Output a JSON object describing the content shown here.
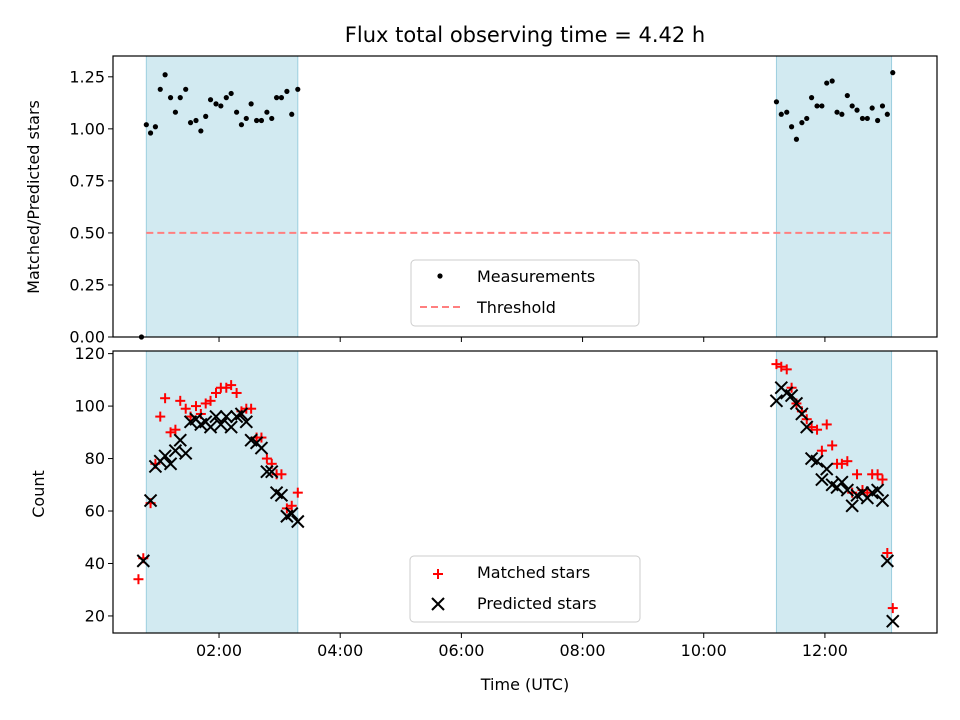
{
  "chart_data": [
    {
      "type": "scatter",
      "title": "Flux total observing time = 4.42 h",
      "xlabel": "",
      "ylabel": "Matched/Predicted stars",
      "xlim": [
        0.25,
        13.85
      ],
      "ylim": [
        0.0,
        1.35
      ],
      "yticks": [
        0.0,
        0.25,
        0.5,
        0.75,
        1.0,
        1.25
      ],
      "ytick_labels": [
        "0.00",
        "0.25",
        "0.50",
        "0.75",
        "1.00",
        "1.25"
      ],
      "xticks": [
        2,
        4,
        6,
        8,
        10,
        12
      ],
      "xtick_labels": [
        "",
        "",
        "",
        "",
        "",
        ""
      ],
      "spans": [
        [
          0.8,
          3.3
        ],
        [
          11.2,
          13.1
        ]
      ],
      "span_color": "#add8e6",
      "threshold": {
        "name": "Threshold",
        "value": 0.5,
        "x": [
          0.8,
          13.1
        ],
        "color": "#ff7f7f"
      },
      "legend": {
        "position": "lower center",
        "entries": [
          "Measurements",
          "Threshold"
        ]
      },
      "series": [
        {
          "name": "Measurements",
          "color": "#000000",
          "points": [
            [
              0.72,
              0.0
            ],
            [
              0.8,
              1.02
            ],
            [
              0.87,
              0.98
            ],
            [
              0.95,
              1.01
            ],
            [
              1.03,
              1.19
            ],
            [
              1.11,
              1.26
            ],
            [
              1.2,
              1.15
            ],
            [
              1.28,
              1.08
            ],
            [
              1.36,
              1.15
            ],
            [
              1.45,
              1.19
            ],
            [
              1.53,
              1.03
            ],
            [
              1.62,
              1.04
            ],
            [
              1.7,
              0.99
            ],
            [
              1.78,
              1.06
            ],
            [
              1.86,
              1.14
            ],
            [
              1.95,
              1.12
            ],
            [
              2.03,
              1.11
            ],
            [
              2.12,
              1.15
            ],
            [
              2.2,
              1.17
            ],
            [
              2.29,
              1.08
            ],
            [
              2.37,
              1.02
            ],
            [
              2.45,
              1.05
            ],
            [
              2.53,
              1.12
            ],
            [
              2.62,
              1.04
            ],
            [
              2.7,
              1.04
            ],
            [
              2.79,
              1.08
            ],
            [
              2.87,
              1.05
            ],
            [
              2.95,
              1.15
            ],
            [
              3.03,
              1.15
            ],
            [
              3.12,
              1.18
            ],
            [
              3.2,
              1.07
            ],
            [
              3.3,
              1.19
            ],
            [
              11.2,
              1.13
            ],
            [
              11.28,
              1.07
            ],
            [
              11.37,
              1.08
            ],
            [
              11.45,
              1.01
            ],
            [
              11.53,
              0.95
            ],
            [
              11.62,
              1.03
            ],
            [
              11.7,
              1.05
            ],
            [
              11.78,
              1.15
            ],
            [
              11.87,
              1.11
            ],
            [
              11.95,
              1.11
            ],
            [
              12.03,
              1.22
            ],
            [
              12.12,
              1.23
            ],
            [
              12.2,
              1.08
            ],
            [
              12.28,
              1.07
            ],
            [
              12.37,
              1.16
            ],
            [
              12.45,
              1.11
            ],
            [
              12.53,
              1.09
            ],
            [
              12.62,
              1.05
            ],
            [
              12.7,
              1.05
            ],
            [
              12.78,
              1.1
            ],
            [
              12.87,
              1.04
            ],
            [
              12.95,
              1.11
            ],
            [
              13.03,
              1.07
            ],
            [
              13.12,
              1.27
            ]
          ]
        }
      ]
    },
    {
      "type": "scatter",
      "title": "",
      "xlabel": "Time (UTC)",
      "ylabel": "Count",
      "xlim": [
        0.25,
        13.85
      ],
      "ylim": [
        13.5,
        121
      ],
      "yticks": [
        20,
        40,
        60,
        80,
        100,
        120
      ],
      "ytick_labels": [
        "20",
        "40",
        "60",
        "80",
        "100",
        "120"
      ],
      "xticks": [
        2,
        4,
        6,
        8,
        10,
        12
      ],
      "xtick_labels": [
        "02:00",
        "04:00",
        "06:00",
        "08:00",
        "10:00",
        "12:00"
      ],
      "spans": [
        [
          0.8,
          3.3
        ],
        [
          11.2,
          13.1
        ]
      ],
      "span_color": "#add8e6",
      "legend": {
        "position": "lower center",
        "entries": [
          "Matched stars",
          "Predicted stars"
        ]
      },
      "series": [
        {
          "name": "Matched stars",
          "marker": "+",
          "color": "#ff0000",
          "points": [
            [
              0.67,
              34
            ],
            [
              0.75,
              42
            ],
            [
              0.87,
              63
            ],
            [
              0.95,
              78
            ],
            [
              1.03,
              96
            ],
            [
              1.11,
              103
            ],
            [
              1.2,
              90
            ],
            [
              1.28,
              91
            ],
            [
              1.36,
              102
            ],
            [
              1.45,
              99
            ],
            [
              1.53,
              96
            ],
            [
              1.62,
              100
            ],
            [
              1.7,
              97
            ],
            [
              1.78,
              101
            ],
            [
              1.86,
              102
            ],
            [
              1.95,
              105
            ],
            [
              2.03,
              107
            ],
            [
              2.12,
              107
            ],
            [
              2.2,
              108
            ],
            [
              2.29,
              105
            ],
            [
              2.37,
              98
            ],
            [
              2.45,
              99
            ],
            [
              2.53,
              99
            ],
            [
              2.62,
              88
            ],
            [
              2.7,
              88
            ],
            [
              2.79,
              80
            ],
            [
              2.87,
              78
            ],
            [
              2.95,
              74
            ],
            [
              3.03,
              74
            ],
            [
              3.12,
              61
            ],
            [
              3.2,
              62
            ],
            [
              3.3,
              67
            ],
            [
              11.2,
              116
            ],
            [
              11.28,
              115
            ],
            [
              11.37,
              114
            ],
            [
              11.45,
              107
            ],
            [
              11.53,
              101
            ],
            [
              11.62,
              98
            ],
            [
              11.7,
              95
            ],
            [
              11.78,
              92
            ],
            [
              11.87,
              91
            ],
            [
              11.95,
              83
            ],
            [
              12.03,
              93
            ],
            [
              12.12,
              85
            ],
            [
              12.2,
              78
            ],
            [
              12.28,
              78
            ],
            [
              12.37,
              79
            ],
            [
              12.45,
              67
            ],
            [
              12.53,
              74
            ],
            [
              12.62,
              68
            ],
            [
              12.7,
              67
            ],
            [
              12.78,
              74
            ],
            [
              12.87,
              74
            ],
            [
              12.95,
              72
            ],
            [
              13.03,
              44
            ],
            [
              13.12,
              23
            ]
          ]
        },
        {
          "name": "Predicted stars",
          "marker": "x",
          "color": "#000000",
          "points": [
            [
              0.75,
              41
            ],
            [
              0.87,
              64
            ],
            [
              0.95,
              77
            ],
            [
              1.03,
              79
            ],
            [
              1.11,
              81
            ],
            [
              1.2,
              78
            ],
            [
              1.28,
              83
            ],
            [
              1.36,
              87
            ],
            [
              1.45,
              82
            ],
            [
              1.53,
              94
            ],
            [
              1.62,
              95
            ],
            [
              1.7,
              93
            ],
            [
              1.78,
              94
            ],
            [
              1.86,
              92
            ],
            [
              1.95,
              96
            ],
            [
              2.03,
              93
            ],
            [
              2.12,
              96
            ],
            [
              2.2,
              92
            ],
            [
              2.29,
              96
            ],
            [
              2.37,
              97
            ],
            [
              2.45,
              94
            ],
            [
              2.53,
              87
            ],
            [
              2.62,
              86
            ],
            [
              2.7,
              84
            ],
            [
              2.79,
              75
            ],
            [
              2.87,
              75
            ],
            [
              2.95,
              67
            ],
            [
              3.03,
              66
            ],
            [
              3.12,
              58
            ],
            [
              3.2,
              59
            ],
            [
              3.3,
              56
            ],
            [
              11.2,
              102
            ],
            [
              11.28,
              107
            ],
            [
              11.37,
              105
            ],
            [
              11.45,
              104
            ],
            [
              11.53,
              101
            ],
            [
              11.62,
              97
            ],
            [
              11.7,
              92
            ],
            [
              11.78,
              80
            ],
            [
              11.87,
              79
            ],
            [
              11.95,
              72
            ],
            [
              12.03,
              76
            ],
            [
              12.12,
              70
            ],
            [
              12.2,
              69
            ],
            [
              12.28,
              71
            ],
            [
              12.37,
              68
            ],
            [
              12.45,
              62
            ],
            [
              12.53,
              66
            ],
            [
              12.62,
              67
            ],
            [
              12.7,
              65
            ],
            [
              12.78,
              67
            ],
            [
              12.87,
              68
            ],
            [
              12.95,
              64
            ],
            [
              13.03,
              41
            ],
            [
              13.12,
              18
            ]
          ]
        }
      ]
    }
  ]
}
